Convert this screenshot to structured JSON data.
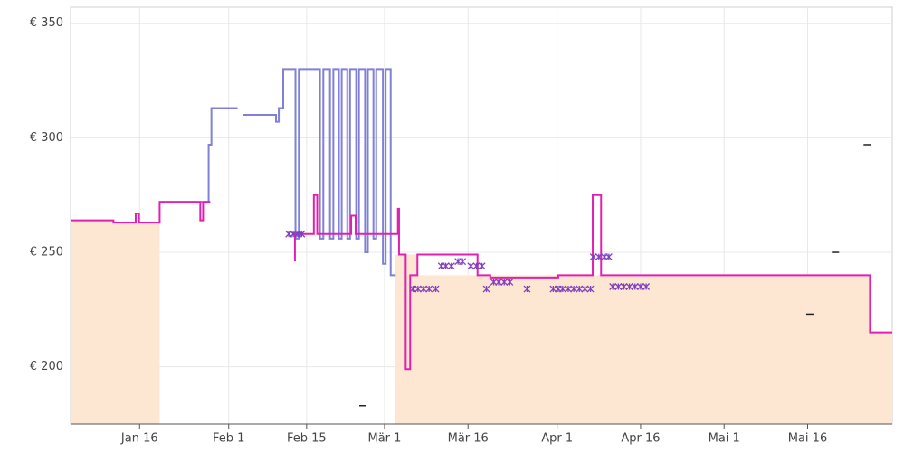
{
  "chart_data": {
    "type": "line",
    "xlim": [
      3.6,
      151.2
    ],
    "ylim": [
      175,
      357
    ],
    "xticks": [
      {
        "value": 16,
        "label": "Jan 16"
      },
      {
        "value": 32,
        "label": "Feb 1"
      },
      {
        "value": 46,
        "label": "Feb 15"
      },
      {
        "value": 60,
        "label": "Mär 1"
      },
      {
        "value": 75,
        "label": "Mär 16"
      },
      {
        "value": 91,
        "label": "Apr 1"
      },
      {
        "value": 106,
        "label": "Apr 16"
      },
      {
        "value": 121,
        "label": "Mai 1"
      },
      {
        "value": 136,
        "label": "Mai 16"
      }
    ],
    "yticks": [
      {
        "value": 200,
        "label": "€ 200"
      },
      {
        "value": 250,
        "label": "€ 250"
      },
      {
        "value": 300,
        "label": "€ 300"
      },
      {
        "value": 350,
        "label": "€ 350"
      }
    ],
    "grid": true,
    "series": [
      {
        "style": "area",
        "color": "#fde6d2",
        "x": [
          3.6,
          11.3,
          11.3,
          19.6,
          null,
          61.9,
          66,
          66,
          147.2,
          147.2,
          151.2
        ],
        "values": [
          264,
          264,
          263,
          263,
          null,
          249,
          249,
          240,
          240,
          215,
          215
        ]
      },
      {
        "style": "line",
        "color": "#8080d8",
        "x": [
          19.6,
          28.4,
          28.4,
          28.9,
          28.9,
          33.6,
          null,
          34.6,
          40.5,
          40.5,
          41,
          41,
          41.8,
          41.8,
          44,
          44,
          44.6,
          44.6,
          48.4,
          48.4,
          49,
          49,
          50.2,
          50.2,
          50.8,
          50.8,
          51.8,
          51.8,
          52.3,
          52.3,
          53.3,
          53.3,
          53.8,
          53.8,
          54.9,
          54.9,
          55.4,
          55.4,
          56.5,
          56.5,
          57,
          57,
          58,
          58,
          58.5,
          58.5,
          59.7,
          59.7,
          60.2,
          60.2,
          61.1,
          61.1,
          62
        ],
        "values": [
          272,
          272,
          297,
          297,
          313,
          313,
          null,
          310,
          310,
          307,
          307,
          313,
          313,
          330,
          330,
          256,
          256,
          330,
          330,
          256,
          256,
          330,
          330,
          256,
          256,
          330,
          330,
          256,
          256,
          330,
          330,
          256,
          256,
          330,
          330,
          256,
          256,
          330,
          330,
          250,
          250,
          330,
          330,
          256,
          256,
          330,
          330,
          245,
          245,
          330,
          330,
          240,
          240
        ]
      },
      {
        "style": "line",
        "color": "#e020b0",
        "x": [
          3.6,
          11.3,
          11.3,
          15.3,
          15.3,
          15.9,
          15.9,
          19.6,
          19.6,
          26.9,
          26.9,
          27.4,
          27.4,
          28.7,
          null,
          43.9,
          43.9,
          47.3,
          47.3,
          47.9,
          47.9,
          54,
          54,
          54.8,
          54.8,
          62.4,
          62.4,
          62.6,
          62.6,
          63.8,
          63.8,
          64.6,
          64.6,
          65.9,
          65.9,
          76.7,
          76.7,
          79,
          79,
          91.2,
          91.2,
          97.4,
          97.4,
          98.9,
          98.9,
          147.2,
          147.2,
          151.2
        ],
        "values": [
          264,
          264,
          263,
          263,
          267,
          267,
          263,
          263,
          272,
          272,
          264,
          264,
          272,
          272,
          null,
          246,
          258,
          258,
          275,
          275,
          258,
          258,
          266,
          266,
          258,
          258,
          269,
          269,
          249,
          249,
          199,
          199,
          240,
          240,
          249,
          249,
          240,
          240,
          239,
          239,
          240,
          240,
          275,
          275,
          240,
          240,
          215,
          215
        ]
      },
      {
        "style": "markers",
        "color": "#8040c0",
        "x": [
          42.8,
          43.6,
          44.4,
          45.1,
          65.1,
          66,
          67,
          68,
          69.2,
          70.2,
          71,
          72,
          73.2,
          74,
          75.5,
          76.5,
          77.5,
          78.3,
          79.6,
          80.5,
          81.5,
          82.5,
          85.6,
          90.3,
          91.2,
          92,
          93,
          94,
          95,
          96,
          97,
          97.5,
          98.5,
          99.5,
          100.3,
          101,
          102,
          103,
          104,
          105,
          106,
          107
        ],
        "values": [
          258,
          258,
          258,
          258,
          234,
          234,
          234,
          234,
          234,
          244,
          244,
          244,
          246,
          246,
          244,
          244,
          244,
          234,
          237,
          237,
          237,
          237,
          234,
          234,
          234,
          234,
          234,
          234,
          234,
          234,
          234,
          248,
          248,
          248,
          248,
          235,
          235,
          235,
          235,
          235,
          235,
          235
        ]
      },
      {
        "style": "dash",
        "color": "#222222",
        "x": [
          56.1,
          136.4,
          141,
          146.7
        ],
        "values": [
          183,
          223,
          250,
          297
        ]
      }
    ]
  }
}
